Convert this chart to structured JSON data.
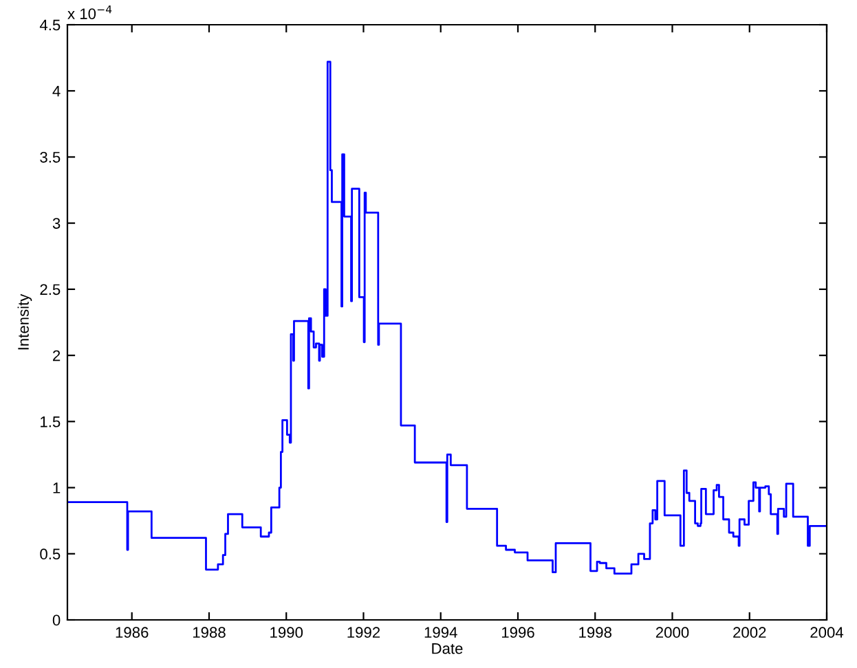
{
  "chart_data": {
    "type": "step",
    "xlabel": "Date",
    "ylabel": "Intensity",
    "annotations": [
      "x 10$^{−4}$"
    ],
    "xlim": [
      1984.33,
      2004
    ],
    "xticks": [
      1986,
      1988,
      1990,
      1992,
      1994,
      1996,
      1998,
      2000,
      2002,
      2004
    ],
    "ylim": [
      0,
      4.5
    ],
    "yticks": [
      0,
      0.5,
      1,
      1.5,
      2,
      2.5,
      3,
      3.5,
      4,
      4.5
    ],
    "grid": false,
    "legend": false,
    "series": [
      {
        "color": "#0000ff",
        "x": [
          1984.33,
          1985.88,
          1985.9,
          1986.51,
          1987.92,
          1988.23,
          1988.36,
          1988.42,
          1988.49,
          1988.86,
          1989.34,
          1989.55,
          1989.61,
          1989.82,
          1989.86,
          1989.9,
          1990.02,
          1990.09,
          1990.12,
          1990.18,
          1990.2,
          1990.57,
          1990.59,
          1990.64,
          1990.71,
          1990.77,
          1990.85,
          1990.87,
          1990.93,
          1990.98,
          1991.02,
          1991.07,
          1991.14,
          1991.18,
          1991.43,
          1991.45,
          1991.5,
          1991.68,
          1991.7,
          1991.89,
          1992.01,
          1992.03,
          1992.06,
          1992.38,
          1992.4,
          1992.97,
          1993.33,
          1994.15,
          1994.17,
          1994.26,
          1994.68,
          1995.46,
          1995.69,
          1995.92,
          1996.25,
          1996.9,
          1996.98,
          1997.88,
          1998.05,
          1998.12,
          1998.29,
          1998.5,
          1998.94,
          1999.12,
          1999.27,
          1999.42,
          1999.49,
          1999.56,
          1999.61,
          1999.8,
          2000.21,
          2000.3,
          2000.37,
          2000.44,
          2000.59,
          2000.66,
          2000.73,
          2000.75,
          2000.87,
          2001.07,
          2001.15,
          2001.21,
          2001.32,
          2001.47,
          2001.58,
          2001.72,
          2001.74,
          2001.87,
          2001.98,
          2002.1,
          2002.16,
          2002.25,
          2002.27,
          2002.41,
          2002.5,
          2002.55,
          2002.72,
          2002.74,
          2002.89,
          2002.95,
          2003.13,
          2003.51,
          2003.56,
          2004
        ],
        "values": [
          0.89,
          0.53,
          0.82,
          0.62,
          0.38,
          0.42,
          0.49,
          0.65,
          0.8,
          0.7,
          0.63,
          0.66,
          0.85,
          1.0,
          1.27,
          1.51,
          1.4,
          1.34,
          2.16,
          1.96,
          2.26,
          1.75,
          2.28,
          2.18,
          2.06,
          2.09,
          1.96,
          2.08,
          1.99,
          2.5,
          2.3,
          4.22,
          3.4,
          3.16,
          2.37,
          3.52,
          3.05,
          2.41,
          3.26,
          2.44,
          2.1,
          3.23,
          3.08,
          2.08,
          2.24,
          1.47,
          1.19,
          0.74,
          1.25,
          1.17,
          0.84,
          0.56,
          0.53,
          0.51,
          0.45,
          0.36,
          0.58,
          0.37,
          0.44,
          0.43,
          0.39,
          0.35,
          0.42,
          0.5,
          0.46,
          0.73,
          0.83,
          0.76,
          1.05,
          0.79,
          0.56,
          1.13,
          0.96,
          0.9,
          0.73,
          0.71,
          0.73,
          0.99,
          0.8,
          0.98,
          1.02,
          0.93,
          0.76,
          0.66,
          0.63,
          0.56,
          0.76,
          0.72,
          0.9,
          1.04,
          1.0,
          0.82,
          1.0,
          1.01,
          0.95,
          0.8,
          0.65,
          0.84,
          0.78,
          1.03,
          0.78,
          0.56,
          0.71,
          0.71
        ]
      }
    ]
  }
}
